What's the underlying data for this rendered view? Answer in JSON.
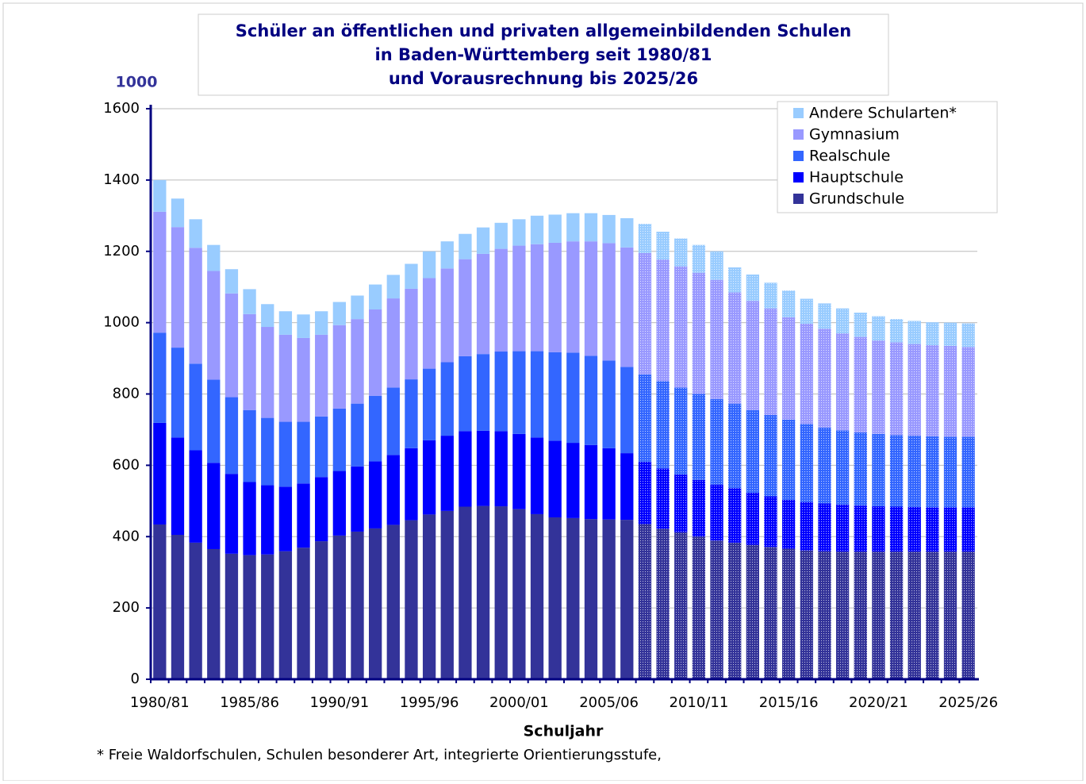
{
  "chart_data": {
    "type": "stacked_bar",
    "title": [
      "Schüler an öffentlichen und privaten allgemeinbildenden Schulen",
      "in Baden-Württemberg seit 1980/81",
      "und Vorausrechnung bis 2025/26"
    ],
    "y_unit": "1000",
    "x_label": "Schuljahr",
    "footnote": "* Freie Waldorfschulen, Schulen besonderer Art, integrierte Orientierungsstufe,",
    "categories": [
      "1980/81",
      null,
      null,
      null,
      null,
      "1985/86",
      null,
      null,
      null,
      null,
      "1990/91",
      null,
      null,
      null,
      null,
      "1995/96",
      null,
      null,
      null,
      null,
      "2000/01",
      null,
      null,
      null,
      null,
      "2005/06",
      null,
      null,
      null,
      null,
      "2010/11",
      null,
      null,
      null,
      null,
      "2015/16",
      null,
      null,
      null,
      null,
      "2020/21",
      null,
      null,
      null,
      null,
      "2025/26"
    ],
    "pattern_from_index": 27,
    "series": [
      {
        "name": "Grundschule",
        "color": "#333399",
        "values": [
          434,
          405,
          383,
          365,
          352,
          348,
          350,
          359,
          369,
          387,
          403,
          414,
          423,
          433,
          446,
          462,
          472,
          484,
          486,
          485,
          477,
          463,
          454,
          452,
          449,
          448,
          447,
          435,
          422,
          412,
          400,
          389,
          383,
          377,
          371,
          366,
          361,
          359,
          358,
          358,
          358,
          358,
          358,
          358,
          358,
          358
        ]
      },
      {
        "name": "Hauptschule",
        "color": "#0000ff",
        "values": [
          285,
          273,
          259,
          242,
          224,
          205,
          194,
          181,
          180,
          180,
          181,
          183,
          188,
          196,
          202,
          208,
          211,
          212,
          211,
          211,
          211,
          215,
          215,
          211,
          208,
          200,
          187,
          175,
          169,
          162,
          159,
          157,
          153,
          146,
          142,
          137,
          136,
          134,
          132,
          129,
          127,
          126,
          125,
          124,
          124,
          124
        ]
      },
      {
        "name": "Realschule",
        "color": "#3366ff",
        "values": [
          253,
          252,
          243,
          233,
          215,
          202,
          189,
          182,
          173,
          170,
          175,
          176,
          184,
          189,
          193,
          201,
          206,
          210,
          215,
          223,
          232,
          242,
          248,
          253,
          250,
          246,
          242,
          245,
          245,
          244,
          241,
          240,
          237,
          232,
          228,
          225,
          219,
          213,
          208,
          205,
          203,
          201,
          200,
          199,
          198,
          198
        ]
      },
      {
        "name": "Gymnasium",
        "color": "#9999ff",
        "values": [
          339,
          338,
          325,
          305,
          291,
          269,
          255,
          244,
          235,
          229,
          234,
          237,
          242,
          250,
          254,
          254,
          263,
          272,
          281,
          288,
          296,
          300,
          307,
          312,
          321,
          329,
          335,
          340,
          341,
          340,
          340,
          334,
          312,
          306,
          299,
          287,
          281,
          277,
          272,
          268,
          262,
          260,
          257,
          256,
          255,
          252
        ]
      },
      {
        "name": "Andere Schularten*",
        "color": "#99ccff",
        "values": [
          89,
          80,
          80,
          73,
          68,
          70,
          64,
          66,
          66,
          66,
          65,
          66,
          70,
          66,
          70,
          75,
          76,
          71,
          74,
          73,
          74,
          80,
          79,
          79,
          79,
          79,
          82,
          82,
          78,
          78,
          78,
          80,
          70,
          74,
          72,
          75,
          70,
          71,
          70,
          68,
          68,
          65,
          65,
          64,
          65,
          66
        ]
      }
    ],
    "ylim": [
      0,
      1600
    ],
    "yticks": [
      0,
      200,
      400,
      600,
      800,
      1000,
      1200,
      1400,
      1600
    ],
    "grid": true
  }
}
